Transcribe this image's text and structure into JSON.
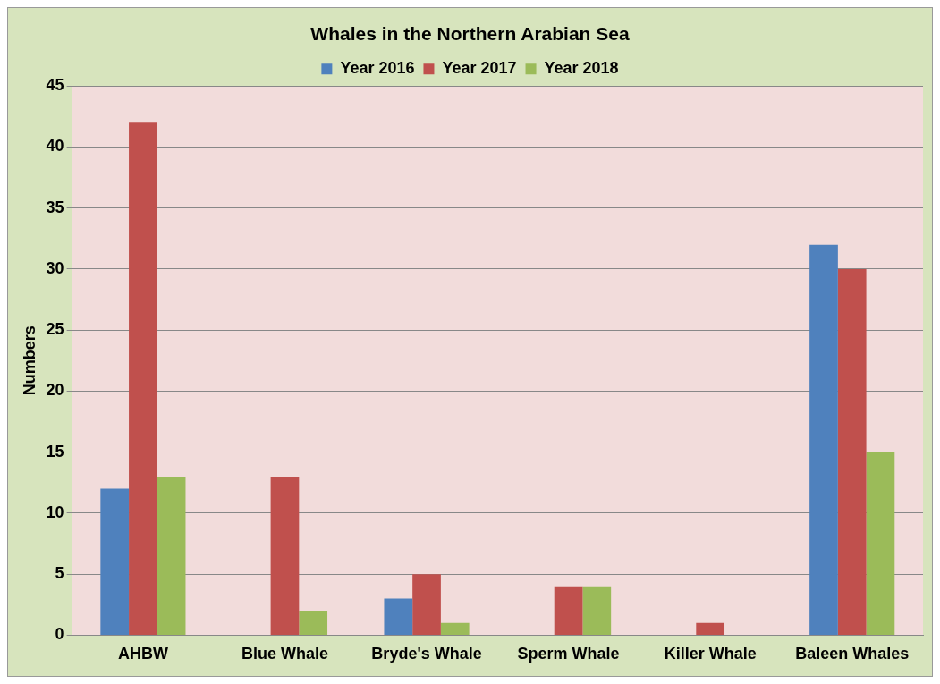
{
  "chart_data": {
    "type": "bar",
    "title": "Whales in the Northern Arabian Sea",
    "ylabel": "Numbers",
    "categories": [
      "AHBW",
      "Blue Whale",
      "Bryde's Whale",
      "Sperm Whale",
      "Killer Whale",
      "Baleen Whales"
    ],
    "series": [
      {
        "name": "Year 2016",
        "color": "#4f81bd",
        "values": [
          12,
          0,
          3,
          0,
          0,
          32
        ]
      },
      {
        "name": "Year 2017",
        "color": "#c0504d",
        "values": [
          42,
          13,
          5,
          4,
          1,
          30
        ]
      },
      {
        "name": "Year 2018",
        "color": "#9bbb59",
        "values": [
          13,
          2,
          1,
          4,
          0,
          15
        ]
      }
    ],
    "ylim": [
      0,
      45
    ],
    "yticks": [
      0,
      5,
      10,
      15,
      20,
      25,
      30,
      35,
      40,
      45
    ],
    "grid": "y",
    "legend": "top"
  }
}
